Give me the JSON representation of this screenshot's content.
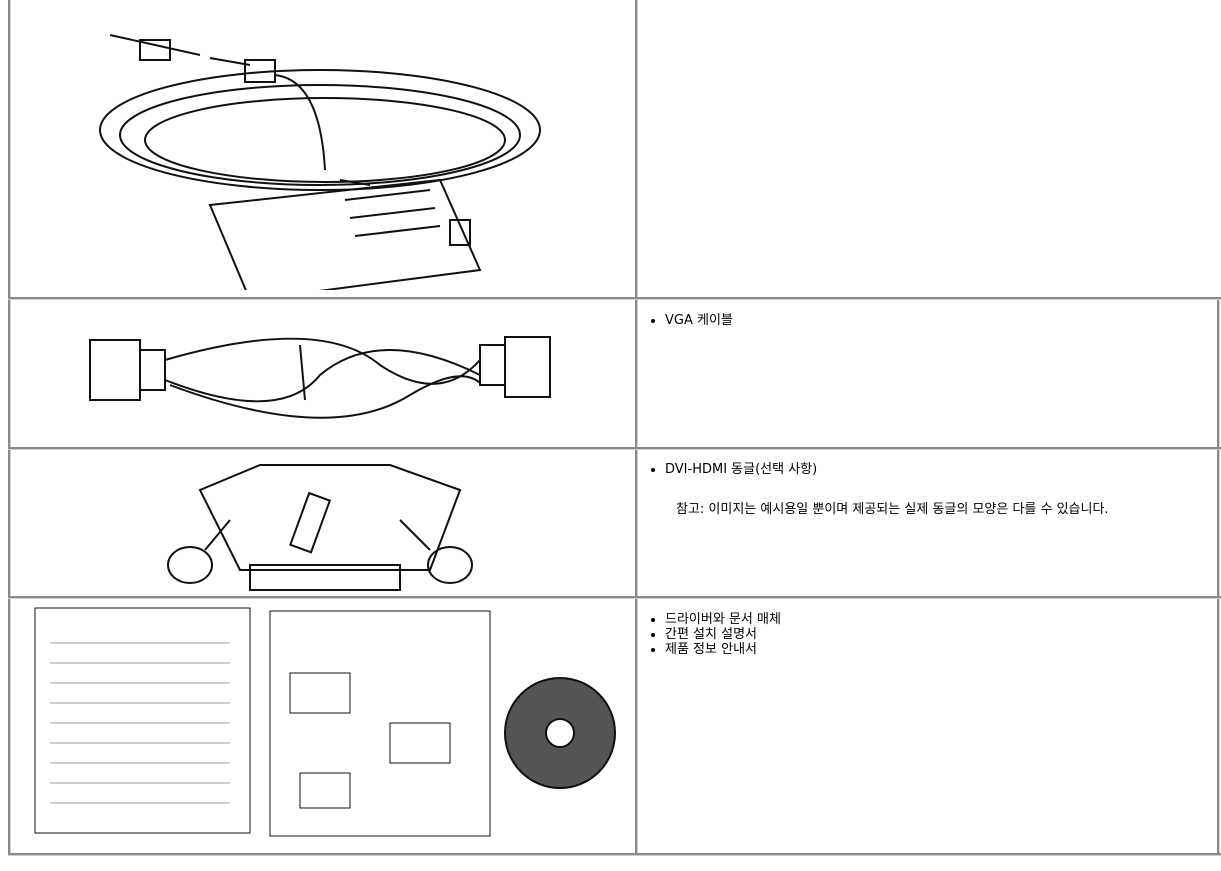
{
  "table": {
    "rows": [
      {
        "items": [
          "VGA 케이블"
        ]
      },
      {
        "items": [
          "DVI-HDMI 동글(선택 사항)"
        ],
        "note": "참고: 이미지는 예시용일 뿐이며 제공되는 실제 동글의 모양은 다를 수 있습니다."
      },
      {
        "items": [
          "드라이버와 문서 매체",
          "간편 설치 설명서",
          "제품 정보 안내서"
        ]
      }
    ]
  }
}
